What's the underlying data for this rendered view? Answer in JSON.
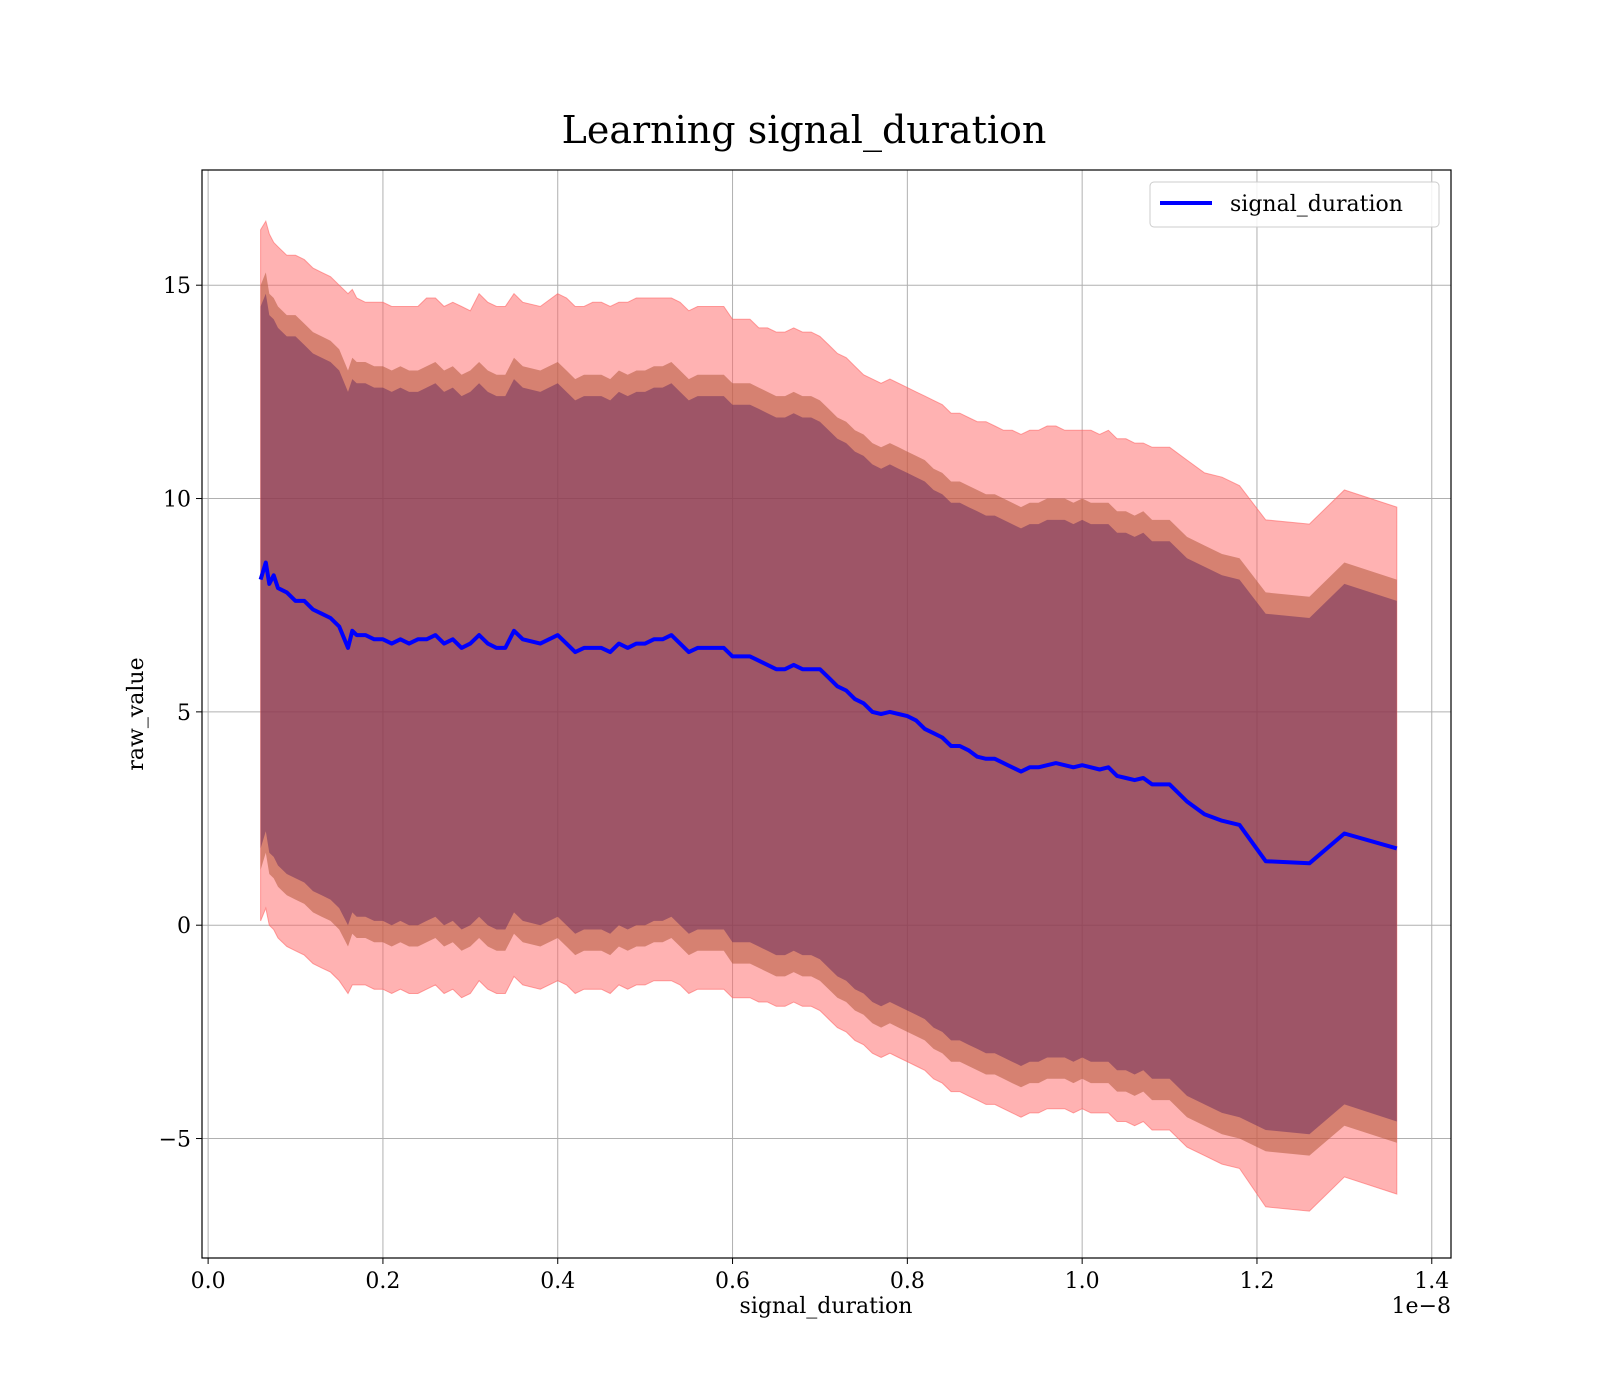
{
  "chart_data": {
    "type": "line",
    "title": "Learning signal_duration",
    "xlabel": "signal_duration",
    "ylabel": "raw_value",
    "x_offset_label": "1e−8",
    "x_scale_factor": 1e-08,
    "xlim": [
      -0.007,
      1.422
    ],
    "ylim": [
      -7.8,
      17.7
    ],
    "grid": true,
    "legend_position": "upper right",
    "x_ticks": [
      0.0,
      0.2,
      0.4,
      0.6,
      0.8,
      1.0,
      1.2,
      1.4
    ],
    "x_tick_labels": [
      "0.0",
      "0.2",
      "0.4",
      "0.6",
      "0.8",
      "1.0",
      "1.2",
      "1.4"
    ],
    "y_ticks": [
      -5,
      0,
      5,
      10,
      15
    ],
    "y_tick_labels": [
      "−5",
      "0",
      "5",
      "10",
      "15"
    ],
    "colors": {
      "line": "#0000ff",
      "outer_band": "#ff6666",
      "middle_band": "#b45a3c",
      "inner_band": "#5a1e5a",
      "grid": "#b0b0b0"
    },
    "series": [
      {
        "name": "signal_duration",
        "x": [
          0.06,
          0.066,
          0.07,
          0.075,
          0.08,
          0.09,
          0.1,
          0.11,
          0.12,
          0.13,
          0.14,
          0.15,
          0.16,
          0.165,
          0.17,
          0.18,
          0.19,
          0.2,
          0.21,
          0.22,
          0.23,
          0.24,
          0.25,
          0.26,
          0.27,
          0.28,
          0.29,
          0.3,
          0.31,
          0.32,
          0.33,
          0.34,
          0.35,
          0.36,
          0.38,
          0.4,
          0.41,
          0.42,
          0.43,
          0.44,
          0.45,
          0.46,
          0.47,
          0.48,
          0.49,
          0.5,
          0.51,
          0.52,
          0.53,
          0.54,
          0.55,
          0.56,
          0.57,
          0.58,
          0.59,
          0.6,
          0.61,
          0.62,
          0.63,
          0.64,
          0.65,
          0.66,
          0.67,
          0.68,
          0.69,
          0.7,
          0.71,
          0.72,
          0.73,
          0.74,
          0.75,
          0.76,
          0.77,
          0.78,
          0.79,
          0.8,
          0.81,
          0.82,
          0.83,
          0.84,
          0.85,
          0.86,
          0.87,
          0.88,
          0.89,
          0.9,
          0.91,
          0.92,
          0.93,
          0.94,
          0.95,
          0.96,
          0.97,
          0.98,
          0.99,
          1.0,
          1.01,
          1.02,
          1.03,
          1.04,
          1.05,
          1.06,
          1.07,
          1.08,
          1.09,
          1.1,
          1.12,
          1.14,
          1.16,
          1.18,
          1.21,
          1.26,
          1.3,
          1.36
        ],
        "values": [
          8.1,
          8.5,
          8.0,
          8.2,
          7.9,
          7.8,
          7.6,
          7.6,
          7.4,
          7.3,
          7.2,
          7.0,
          6.5,
          6.9,
          6.8,
          6.8,
          6.7,
          6.7,
          6.6,
          6.7,
          6.6,
          6.7,
          6.7,
          6.8,
          6.6,
          6.7,
          6.5,
          6.6,
          6.8,
          6.6,
          6.5,
          6.5,
          6.9,
          6.7,
          6.6,
          6.8,
          6.6,
          6.4,
          6.5,
          6.5,
          6.5,
          6.4,
          6.6,
          6.5,
          6.6,
          6.6,
          6.7,
          6.7,
          6.8,
          6.6,
          6.4,
          6.5,
          6.5,
          6.5,
          6.5,
          6.3,
          6.3,
          6.3,
          6.2,
          6.1,
          6.0,
          6.0,
          6.1,
          6.0,
          6.0,
          6.0,
          5.8,
          5.6,
          5.5,
          5.3,
          5.2,
          5.0,
          4.95,
          5.0,
          4.95,
          4.9,
          4.8,
          4.6,
          4.5,
          4.4,
          4.2,
          4.2,
          4.1,
          3.95,
          3.9,
          3.9,
          3.8,
          3.7,
          3.6,
          3.7,
          3.7,
          3.75,
          3.8,
          3.75,
          3.7,
          3.75,
          3.7,
          3.65,
          3.7,
          3.5,
          3.45,
          3.4,
          3.45,
          3.3,
          3.3,
          3.3,
          2.9,
          2.6,
          2.45,
          2.35,
          1.5,
          1.45,
          2.15,
          1.8
        ],
        "outer_upper": [
          16.3,
          16.5,
          16.2,
          16.0,
          15.9,
          15.7,
          15.7,
          15.6,
          15.4,
          15.3,
          15.2,
          15.0,
          14.8,
          14.9,
          14.7,
          14.6,
          14.6,
          14.6,
          14.5,
          14.5,
          14.5,
          14.5,
          14.7,
          14.7,
          14.5,
          14.6,
          14.5,
          14.4,
          14.8,
          14.6,
          14.5,
          14.5,
          14.8,
          14.6,
          14.5,
          14.8,
          14.7,
          14.5,
          14.5,
          14.6,
          14.6,
          14.5,
          14.6,
          14.6,
          14.7,
          14.7,
          14.7,
          14.7,
          14.7,
          14.6,
          14.4,
          14.5,
          14.5,
          14.5,
          14.5,
          14.2,
          14.2,
          14.2,
          14.0,
          14.0,
          13.9,
          13.9,
          14.0,
          13.9,
          13.9,
          13.8,
          13.6,
          13.4,
          13.3,
          13.1,
          12.9,
          12.8,
          12.7,
          12.8,
          12.7,
          12.6,
          12.5,
          12.4,
          12.3,
          12.2,
          12.0,
          12.0,
          11.9,
          11.8,
          11.8,
          11.7,
          11.6,
          11.6,
          11.5,
          11.6,
          11.6,
          11.7,
          11.7,
          11.6,
          11.6,
          11.6,
          11.6,
          11.5,
          11.6,
          11.4,
          11.4,
          11.3,
          11.3,
          11.2,
          11.2,
          11.2,
          10.9,
          10.6,
          10.5,
          10.3,
          9.5,
          9.4,
          10.2,
          9.8
        ],
        "middle_upper": [
          15.0,
          15.3,
          14.8,
          14.7,
          14.5,
          14.3,
          14.3,
          14.1,
          13.9,
          13.8,
          13.7,
          13.5,
          13.0,
          13.3,
          13.2,
          13.2,
          13.1,
          13.1,
          13.0,
          13.1,
          13.0,
          13.0,
          13.1,
          13.2,
          13.0,
          13.1,
          12.9,
          13.0,
          13.2,
          13.0,
          12.9,
          12.9,
          13.3,
          13.1,
          13.0,
          13.2,
          13.0,
          12.8,
          12.9,
          12.9,
          12.9,
          12.8,
          13.0,
          12.9,
          13.0,
          13.0,
          13.1,
          13.1,
          13.2,
          13.0,
          12.8,
          12.9,
          12.9,
          12.9,
          12.9,
          12.7,
          12.7,
          12.7,
          12.6,
          12.5,
          12.4,
          12.4,
          12.5,
          12.4,
          12.4,
          12.3,
          12.1,
          11.9,
          11.8,
          11.6,
          11.5,
          11.3,
          11.2,
          11.3,
          11.2,
          11.1,
          11.0,
          10.9,
          10.7,
          10.6,
          10.4,
          10.4,
          10.3,
          10.2,
          10.1,
          10.1,
          10.0,
          9.9,
          9.8,
          9.9,
          9.9,
          10.0,
          10.0,
          10.0,
          9.9,
          10.0,
          9.9,
          9.9,
          9.9,
          9.7,
          9.7,
          9.6,
          9.7,
          9.5,
          9.5,
          9.5,
          9.1,
          8.9,
          8.7,
          8.6,
          7.8,
          7.7,
          8.5,
          8.1
        ],
        "inner_upper": [
          14.5,
          14.8,
          14.3,
          14.2,
          14.0,
          13.8,
          13.8,
          13.6,
          13.4,
          13.3,
          13.2,
          13.0,
          12.5,
          12.8,
          12.7,
          12.7,
          12.6,
          12.6,
          12.5,
          12.6,
          12.5,
          12.5,
          12.6,
          12.7,
          12.5,
          12.6,
          12.4,
          12.5,
          12.7,
          12.5,
          12.4,
          12.4,
          12.8,
          12.6,
          12.5,
          12.7,
          12.5,
          12.3,
          12.4,
          12.4,
          12.4,
          12.3,
          12.5,
          12.4,
          12.5,
          12.5,
          12.6,
          12.6,
          12.7,
          12.5,
          12.3,
          12.4,
          12.4,
          12.4,
          12.4,
          12.2,
          12.2,
          12.2,
          12.1,
          12.0,
          11.9,
          11.9,
          12.0,
          11.9,
          11.9,
          11.8,
          11.6,
          11.4,
          11.3,
          11.1,
          11.0,
          10.8,
          10.7,
          10.8,
          10.7,
          10.6,
          10.5,
          10.4,
          10.2,
          10.1,
          9.9,
          9.9,
          9.8,
          9.7,
          9.6,
          9.6,
          9.5,
          9.4,
          9.3,
          9.4,
          9.4,
          9.5,
          9.5,
          9.5,
          9.4,
          9.5,
          9.4,
          9.4,
          9.4,
          9.2,
          9.2,
          9.1,
          9.2,
          9.0,
          9.0,
          9.0,
          8.6,
          8.4,
          8.2,
          8.1,
          7.3,
          7.2,
          8.0,
          7.6
        ],
        "inner_lower": [
          1.8,
          2.2,
          1.7,
          1.6,
          1.4,
          1.2,
          1.1,
          1.0,
          0.8,
          0.7,
          0.6,
          0.4,
          0.0,
          0.3,
          0.2,
          0.2,
          0.1,
          0.1,
          0.0,
          0.1,
          0.0,
          0.0,
          0.1,
          0.2,
          0.0,
          0.1,
          -0.1,
          0.0,
          0.2,
          0.0,
          -0.1,
          -0.1,
          0.3,
          0.1,
          0.0,
          0.2,
          0.0,
          -0.2,
          -0.1,
          -0.1,
          -0.1,
          -0.2,
          0.0,
          -0.1,
          0.0,
          0.0,
          0.1,
          0.1,
          0.2,
          0.0,
          -0.2,
          -0.1,
          -0.1,
          -0.1,
          -0.1,
          -0.4,
          -0.4,
          -0.4,
          -0.5,
          -0.6,
          -0.7,
          -0.7,
          -0.6,
          -0.7,
          -0.7,
          -0.8,
          -1.0,
          -1.2,
          -1.3,
          -1.5,
          -1.6,
          -1.8,
          -1.9,
          -1.8,
          -1.9,
          -2.0,
          -2.1,
          -2.2,
          -2.4,
          -2.5,
          -2.7,
          -2.7,
          -2.8,
          -2.9,
          -3.0,
          -3.0,
          -3.1,
          -3.2,
          -3.3,
          -3.2,
          -3.2,
          -3.1,
          -3.1,
          -3.1,
          -3.2,
          -3.1,
          -3.2,
          -3.2,
          -3.2,
          -3.4,
          -3.4,
          -3.5,
          -3.4,
          -3.6,
          -3.6,
          -3.6,
          -4.0,
          -4.2,
          -4.4,
          -4.5,
          -4.8,
          -4.9,
          -4.2,
          -4.6
        ],
        "middle_lower": [
          1.3,
          1.7,
          1.2,
          1.1,
          0.9,
          0.7,
          0.6,
          0.5,
          0.3,
          0.2,
          0.1,
          -0.1,
          -0.5,
          -0.2,
          -0.3,
          -0.3,
          -0.4,
          -0.4,
          -0.5,
          -0.4,
          -0.5,
          -0.5,
          -0.4,
          -0.3,
          -0.5,
          -0.4,
          -0.6,
          -0.5,
          -0.3,
          -0.5,
          -0.6,
          -0.6,
          -0.2,
          -0.4,
          -0.5,
          -0.3,
          -0.5,
          -0.7,
          -0.6,
          -0.6,
          -0.6,
          -0.7,
          -0.5,
          -0.6,
          -0.5,
          -0.5,
          -0.4,
          -0.4,
          -0.3,
          -0.5,
          -0.7,
          -0.6,
          -0.6,
          -0.6,
          -0.6,
          -0.9,
          -0.9,
          -0.9,
          -1.0,
          -1.1,
          -1.2,
          -1.2,
          -1.1,
          -1.2,
          -1.2,
          -1.3,
          -1.5,
          -1.7,
          -1.8,
          -2.0,
          -2.1,
          -2.3,
          -2.4,
          -2.3,
          -2.4,
          -2.5,
          -2.6,
          -2.7,
          -2.9,
          -3.0,
          -3.2,
          -3.2,
          -3.3,
          -3.4,
          -3.5,
          -3.5,
          -3.6,
          -3.7,
          -3.8,
          -3.7,
          -3.7,
          -3.6,
          -3.6,
          -3.6,
          -3.7,
          -3.6,
          -3.7,
          -3.7,
          -3.7,
          -3.9,
          -3.9,
          -4.0,
          -3.9,
          -4.1,
          -4.1,
          -4.1,
          -4.5,
          -4.7,
          -4.9,
          -5.0,
          -5.3,
          -5.4,
          -4.7,
          -5.1
        ],
        "outer_lower": [
          0.1,
          0.4,
          0.0,
          -0.1,
          -0.3,
          -0.5,
          -0.6,
          -0.7,
          -0.9,
          -1.0,
          -1.1,
          -1.3,
          -1.6,
          -1.4,
          -1.4,
          -1.4,
          -1.5,
          -1.5,
          -1.6,
          -1.5,
          -1.6,
          -1.6,
          -1.5,
          -1.4,
          -1.6,
          -1.5,
          -1.7,
          -1.6,
          -1.3,
          -1.5,
          -1.6,
          -1.6,
          -1.2,
          -1.4,
          -1.5,
          -1.3,
          -1.4,
          -1.6,
          -1.5,
          -1.5,
          -1.5,
          -1.6,
          -1.4,
          -1.5,
          -1.4,
          -1.4,
          -1.3,
          -1.3,
          -1.3,
          -1.4,
          -1.6,
          -1.5,
          -1.5,
          -1.5,
          -1.5,
          -1.7,
          -1.7,
          -1.7,
          -1.8,
          -1.8,
          -1.9,
          -1.9,
          -1.8,
          -1.9,
          -1.9,
          -2.0,
          -2.2,
          -2.4,
          -2.5,
          -2.7,
          -2.8,
          -3.0,
          -3.1,
          -3.0,
          -3.1,
          -3.2,
          -3.3,
          -3.4,
          -3.6,
          -3.7,
          -3.9,
          -3.9,
          -4.0,
          -4.1,
          -4.2,
          -4.2,
          -4.3,
          -4.4,
          -4.5,
          -4.4,
          -4.4,
          -4.3,
          -4.3,
          -4.3,
          -4.4,
          -4.3,
          -4.4,
          -4.4,
          -4.4,
          -4.6,
          -4.6,
          -4.7,
          -4.6,
          -4.8,
          -4.8,
          -4.8,
          -5.2,
          -5.4,
          -5.6,
          -5.7,
          -6.6,
          -6.7,
          -5.9,
          -6.3
        ]
      }
    ]
  }
}
